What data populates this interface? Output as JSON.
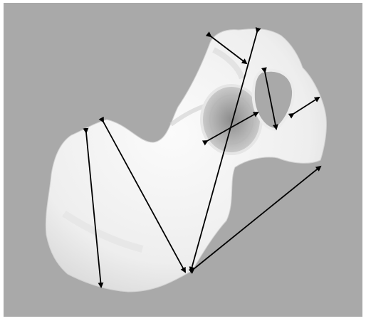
{
  "image": {
    "subject": "bone",
    "background_color": "#a9a9a9",
    "bone_color": "#f2f2f2",
    "arrow_color": "#000000"
  },
  "measurement_arrows": [
    {
      "id": "arrow-1"
    },
    {
      "id": "arrow-2"
    },
    {
      "id": "arrow-3"
    },
    {
      "id": "arrow-4"
    },
    {
      "id": "arrow-5"
    },
    {
      "id": "arrow-6"
    },
    {
      "id": "arrow-7"
    },
    {
      "id": "arrow-8"
    }
  ]
}
